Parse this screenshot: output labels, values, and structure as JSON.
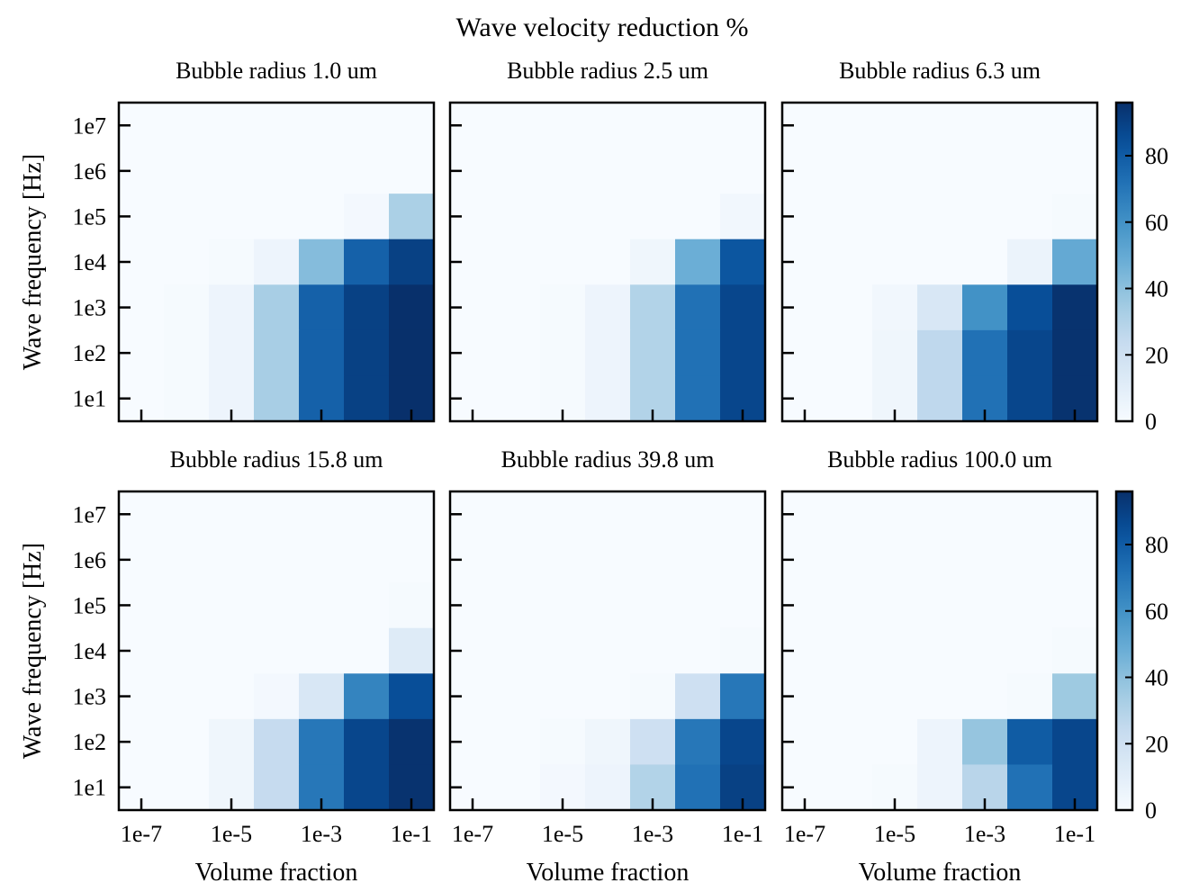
{
  "chart_data": {
    "type": "heatmap",
    "title": "Wave velocity reduction %",
    "xlabel": "Volume fraction",
    "ylabel": "Wave frequency [Hz]",
    "x_values": [
      "1e-7",
      "1e-6",
      "1e-5",
      "1e-4",
      "1e-3",
      "1e-2",
      "1e-1"
    ],
    "y_values": [
      "1e7",
      "1e6",
      "1e5",
      "1e4",
      "1e3",
      "1e2",
      "1e1"
    ],
    "x_tick_labels": [
      "1e-7",
      "1e-5",
      "1e-3",
      "1e-1"
    ],
    "y_tick_labels": [
      "1e7",
      "1e6",
      "1e5",
      "1e4",
      "1e3",
      "1e2",
      "1e1"
    ],
    "colorbar": {
      "min": 0,
      "max": 96,
      "ticks": [
        "0",
        "20",
        "40",
        "60",
        "80"
      ],
      "colormap": "Blues"
    },
    "panels": [
      {
        "title": "Bubble radius 1.0 um",
        "values": [
          [
            0,
            0,
            0,
            0,
            0,
            0,
            0
          ],
          [
            0,
            0,
            0,
            0,
            0,
            0,
            0
          ],
          [
            0,
            0,
            0,
            0,
            0,
            2,
            32
          ],
          [
            0,
            0,
            1,
            5,
            42,
            78,
            90
          ],
          [
            0,
            1,
            5,
            33,
            78,
            90,
            96
          ],
          [
            0,
            1,
            5,
            33,
            78,
            90,
            96
          ],
          [
            0,
            1,
            5,
            33,
            78,
            90,
            96
          ]
        ]
      },
      {
        "title": "Bubble radius 2.5 um",
        "values": [
          [
            0,
            0,
            0,
            0,
            0,
            0,
            0
          ],
          [
            0,
            0,
            0,
            0,
            0,
            0,
            0
          ],
          [
            0,
            0,
            0,
            0,
            0,
            0,
            3
          ],
          [
            0,
            0,
            0,
            0,
            4,
            48,
            82
          ],
          [
            0,
            0,
            1,
            5,
            30,
            72,
            88
          ],
          [
            0,
            0,
            1,
            5,
            30,
            72,
            88
          ],
          [
            0,
            0,
            1,
            5,
            30,
            72,
            88
          ]
        ]
      },
      {
        "title": "Bubble radius 6.3 um",
        "values": [
          [
            0,
            0,
            0,
            0,
            0,
            0,
            0
          ],
          [
            0,
            0,
            0,
            0,
            0,
            0,
            0
          ],
          [
            0,
            0,
            0,
            0,
            0,
            0,
            1
          ],
          [
            0,
            0,
            0,
            0,
            0,
            6,
            50
          ],
          [
            0,
            0,
            3,
            15,
            60,
            85,
            95
          ],
          [
            0,
            0,
            4,
            26,
            72,
            88,
            95
          ],
          [
            0,
            0,
            4,
            26,
            72,
            88,
            95
          ]
        ]
      },
      {
        "title": "Bubble radius 15.8 um",
        "values": [
          [
            0,
            0,
            0,
            0,
            0,
            0,
            0
          ],
          [
            0,
            0,
            0,
            0,
            0,
            0,
            0
          ],
          [
            0,
            0,
            0,
            0,
            0,
            0,
            1
          ],
          [
            0,
            0,
            0,
            0,
            0,
            0,
            12
          ],
          [
            0,
            0,
            0,
            2,
            15,
            65,
            85
          ],
          [
            0,
            0,
            4,
            24,
            70,
            88,
            95
          ],
          [
            0,
            0,
            4,
            24,
            70,
            88,
            95
          ]
        ]
      },
      {
        "title": "Bubble radius 39.8 um",
        "values": [
          [
            0,
            0,
            0,
            0,
            0,
            0,
            0
          ],
          [
            0,
            0,
            0,
            0,
            0,
            0,
            0
          ],
          [
            0,
            0,
            0,
            0,
            0,
            0,
            0
          ],
          [
            0,
            0,
            0,
            0,
            0,
            0,
            1
          ],
          [
            0,
            0,
            0,
            0,
            1,
            20,
            70
          ],
          [
            0,
            0,
            1,
            4,
            20,
            70,
            88
          ],
          [
            0,
            0,
            2,
            5,
            30,
            72,
            90
          ]
        ]
      },
      {
        "title": "Bubble radius 100.0 um",
        "values": [
          [
            0,
            0,
            0,
            0,
            0,
            0,
            0
          ],
          [
            0,
            0,
            0,
            0,
            0,
            0,
            0
          ],
          [
            0,
            0,
            0,
            0,
            0,
            0,
            0
          ],
          [
            0,
            0,
            0,
            0,
            0,
            0,
            1
          ],
          [
            0,
            0,
            0,
            0,
            0,
            1,
            36
          ],
          [
            0,
            0,
            0,
            5,
            38,
            80,
            88
          ],
          [
            0,
            0,
            1,
            5,
            28,
            72,
            88
          ]
        ]
      }
    ]
  }
}
